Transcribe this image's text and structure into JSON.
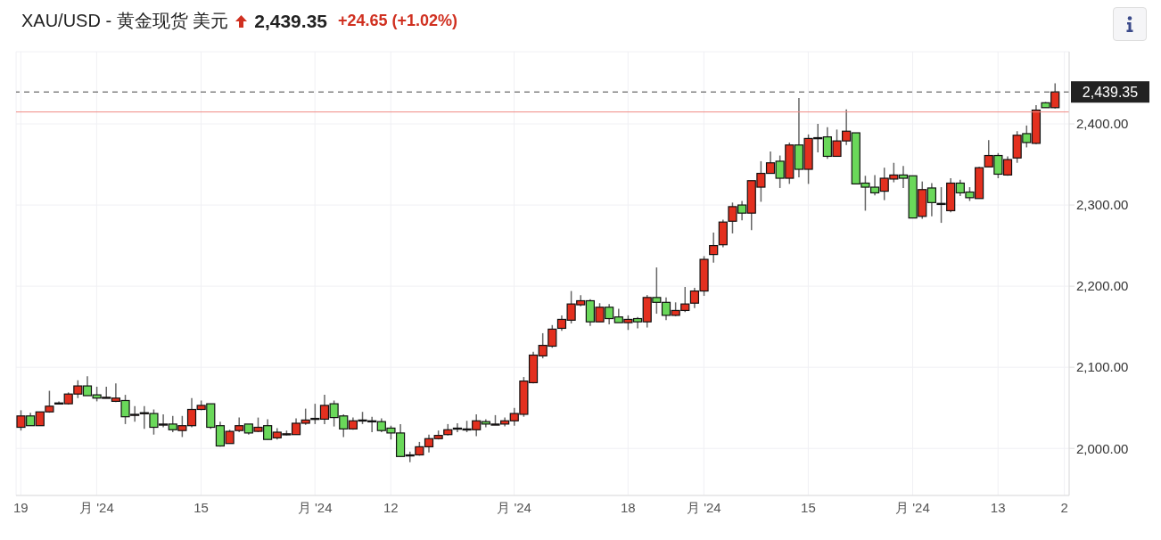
{
  "chart_data": {
    "type": "candlestick",
    "title": "XAU/USD - 黄金现货 美元",
    "annotations": [
      "2,439.35",
      "+24.65 (+1.02%)"
    ],
    "categories": [
      "19",
      null,
      null,
      null,
      null,
      null,
      null,
      null,
      "月 '24",
      null,
      null,
      null,
      null,
      null,
      null,
      null,
      null,
      null,
      null,
      "15",
      null,
      null,
      null,
      null,
      null,
      null,
      null,
      null,
      null,
      null,
      null,
      "月 '24",
      null,
      null,
      null,
      null,
      null,
      null,
      null,
      "12",
      null,
      null,
      null,
      null,
      null,
      null,
      null,
      null,
      null,
      null,
      null,
      null,
      "月 '24",
      null,
      null,
      null,
      null,
      null,
      null,
      null,
      null,
      null,
      null,
      null,
      "18",
      null,
      null,
      null,
      null,
      null,
      null,
      null,
      "月 '24",
      null,
      null,
      null,
      null,
      null,
      null,
      null,
      null,
      null,
      null,
      "15",
      null,
      null,
      null,
      null,
      null,
      null,
      null,
      null,
      null,
      null,
      "月 '24",
      null,
      null,
      null,
      null,
      null,
      null,
      null,
      null,
      "13",
      null,
      null,
      null,
      null,
      null,
      null,
      "2"
    ],
    "ohlc": [
      [
        2026,
        2047,
        2022,
        2040
      ],
      [
        2040,
        2044,
        2028,
        2028
      ],
      [
        2028,
        2045,
        2028,
        2045
      ],
      [
        2045,
        2071,
        2044,
        2052
      ],
      [
        2055,
        2058,
        2054,
        2056
      ],
      [
        2055,
        2069,
        2054,
        2067
      ],
      [
        2067,
        2084,
        2062,
        2077
      ],
      [
        2077,
        2089,
        2065,
        2065
      ],
      [
        2066,
        2076,
        2058,
        2062
      ],
      [
        2063,
        2076,
        2062,
        2063
      ],
      [
        2058,
        2080,
        2057,
        2062
      ],
      [
        2059,
        2066,
        2030,
        2039
      ],
      [
        2042,
        2052,
        2033,
        2042
      ],
      [
        2044,
        2052,
        2024,
        2044
      ],
      [
        2043,
        2048,
        2017,
        2026
      ],
      [
        2030,
        2042,
        2026,
        2030
      ],
      [
        2030,
        2040,
        2020,
        2023
      ],
      [
        2022,
        2040,
        2014,
        2028
      ],
      [
        2028,
        2062,
        2026,
        2048
      ],
      [
        2048,
        2059,
        2047,
        2053
      ],
      [
        2055,
        2055,
        2024,
        2026
      ],
      [
        2028,
        2033,
        2002,
        2003
      ],
      [
        2006,
        2023,
        2006,
        2021
      ],
      [
        2022,
        2038,
        2020,
        2028
      ],
      [
        2030,
        2030,
        2017,
        2019
      ],
      [
        2021,
        2038,
        2020,
        2026
      ],
      [
        2028,
        2036,
        2011,
        2011
      ],
      [
        2013,
        2025,
        2011,
        2020
      ],
      [
        2017,
        2022,
        2016,
        2018
      ],
      [
        2017,
        2037,
        2017,
        2031
      ],
      [
        2031,
        2049,
        2029,
        2035
      ],
      [
        2036,
        2055,
        2030,
        2037
      ],
      [
        2036,
        2066,
        2030,
        2053
      ],
      [
        2055,
        2059,
        2027,
        2038
      ],
      [
        2040,
        2042,
        2014,
        2024
      ],
      [
        2024,
        2038,
        2023,
        2034
      ],
      [
        2034,
        2045,
        2030,
        2035
      ],
      [
        2033,
        2039,
        2020,
        2034
      ],
      [
        2033,
        2037,
        2020,
        2022
      ],
      [
        2025,
        2028,
        2011,
        2019
      ],
      [
        2019,
        2030,
        1990,
        1990
      ],
      [
        1991,
        1996,
        1983,
        1992
      ],
      [
        1992,
        2008,
        1991,
        2002
      ],
      [
        2002,
        2017,
        1995,
        2012
      ],
      [
        2012,
        2022,
        2011,
        2016
      ],
      [
        2017,
        2030,
        2016,
        2023
      ],
      [
        2024,
        2031,
        2020,
        2025
      ],
      [
        2023,
        2034,
        2020,
        2024
      ],
      [
        2023,
        2042,
        2015,
        2034
      ],
      [
        2033,
        2036,
        2026,
        2030
      ],
      [
        2030,
        2041,
        2029,
        2030
      ],
      [
        2030,
        2038,
        2027,
        2034
      ],
      [
        2034,
        2050,
        2028,
        2043
      ],
      [
        2042,
        2088,
        2039,
        2083
      ],
      [
        2081,
        2119,
        2080,
        2115
      ],
      [
        2114,
        2142,
        2111,
        2127
      ],
      [
        2126,
        2152,
        2124,
        2147
      ],
      [
        2148,
        2164,
        2145,
        2159
      ],
      [
        2158,
        2194,
        2154,
        2178
      ],
      [
        2177,
        2189,
        2175,
        2182
      ],
      [
        2182,
        2184,
        2151,
        2156
      ],
      [
        2156,
        2179,
        2156,
        2174
      ],
      [
        2174,
        2178,
        2153,
        2160
      ],
      [
        2162,
        2172,
        2155,
        2155
      ],
      [
        2155,
        2164,
        2146,
        2159
      ],
      [
        2160,
        2162,
        2148,
        2156
      ],
      [
        2156,
        2189,
        2149,
        2186
      ],
      [
        2186,
        2223,
        2166,
        2180
      ],
      [
        2180,
        2186,
        2158,
        2164
      ],
      [
        2164,
        2180,
        2163,
        2170
      ],
      [
        2170,
        2199,
        2168,
        2178
      ],
      [
        2179,
        2198,
        2173,
        2194
      ],
      [
        2194,
        2237,
        2188,
        2233
      ],
      [
        2239,
        2266,
        2229,
        2250
      ],
      [
        2251,
        2282,
        2248,
        2279
      ],
      [
        2280,
        2303,
        2265,
        2298
      ],
      [
        2300,
        2305,
        2281,
        2290
      ],
      [
        2290,
        2330,
        2269,
        2330
      ],
      [
        2322,
        2354,
        2304,
        2339
      ],
      [
        2339,
        2366,
        2339,
        2352
      ],
      [
        2354,
        2361,
        2321,
        2333
      ],
      [
        2333,
        2377,
        2326,
        2374
      ],
      [
        2374,
        2432,
        2334,
        2344
      ],
      [
        2344,
        2387,
        2326,
        2382
      ],
      [
        2382,
        2400,
        2365,
        2383
      ],
      [
        2384,
        2396,
        2357,
        2360
      ],
      [
        2360,
        2393,
        2360,
        2379
      ],
      [
        2379,
        2418,
        2374,
        2391
      ],
      [
        2389,
        2389,
        2326,
        2326
      ],
      [
        2327,
        2336,
        2293,
        2322
      ],
      [
        2322,
        2337,
        2312,
        2315
      ],
      [
        2317,
        2346,
        2306,
        2333
      ],
      [
        2332,
        2352,
        2328,
        2337
      ],
      [
        2337,
        2348,
        2321,
        2333
      ],
      [
        2336,
        2336,
        2284,
        2284
      ],
      [
        2286,
        2329,
        2283,
        2319
      ],
      [
        2321,
        2327,
        2286,
        2303
      ],
      [
        2302,
        2322,
        2278,
        2302
      ],
      [
        2293,
        2333,
        2291,
        2327
      ],
      [
        2327,
        2331,
        2311,
        2315
      ],
      [
        2316,
        2322,
        2305,
        2309
      ],
      [
        2308,
        2347,
        2308,
        2346
      ],
      [
        2347,
        2380,
        2347,
        2361
      ],
      [
        2361,
        2364,
        2333,
        2338
      ],
      [
        2337,
        2360,
        2336,
        2356
      ],
      [
        2358,
        2391,
        2352,
        2386
      ],
      [
        2388,
        2398,
        2371,
        2377
      ],
      [
        2376,
        2423,
        2375,
        2417
      ],
      [
        2426,
        2427,
        2420,
        2420
      ],
      [
        2420,
        2450,
        2419,
        2439.35
      ],
      null
    ],
    "colors": [
      "#e3301f",
      "#6ad85a",
      "#e3301f",
      "#e3301f",
      "#e3301f",
      "#e3301f",
      "#e3301f",
      "#6ad85a",
      "#6ad85a",
      "#e3301f",
      "#e3301f",
      "#6ad85a",
      "#e3301f",
      "#e3301f",
      "#6ad85a",
      "#e3301f",
      "#6ad85a",
      "#e3301f",
      "#e3301f",
      "#e3301f",
      "#6ad85a",
      "#6ad85a",
      "#e3301f",
      "#e3301f",
      "#6ad85a",
      "#e3301f",
      "#6ad85a",
      "#e3301f",
      "#e3301f",
      "#e3301f",
      "#e3301f",
      "#e3301f",
      "#e3301f",
      "#6ad85a",
      "#6ad85a",
      "#e3301f",
      "#e3301f",
      "#e3301f",
      "#6ad85a",
      "#6ad85a",
      "#6ad85a",
      "#e3301f",
      "#e3301f",
      "#e3301f",
      "#e3301f",
      "#e3301f",
      "#e3301f",
      "#e3301f",
      "#e3301f",
      "#6ad85a",
      "#e3301f",
      "#e3301f",
      "#e3301f",
      "#e3301f",
      "#e3301f",
      "#e3301f",
      "#e3301f",
      "#e3301f",
      "#e3301f",
      "#e3301f",
      "#6ad85a",
      "#e3301f",
      "#6ad85a",
      "#6ad85a",
      "#e3301f",
      "#6ad85a",
      "#e3301f",
      "#6ad85a",
      "#6ad85a",
      "#e3301f",
      "#e3301f",
      "#e3301f",
      "#e3301f",
      "#e3301f",
      "#e3301f",
      "#e3301f",
      "#6ad85a",
      "#e3301f",
      "#e3301f",
      "#e3301f",
      "#6ad85a",
      "#e3301f",
      "#6ad85a",
      "#e3301f",
      "#e3301f",
      "#6ad85a",
      "#e3301f",
      "#e3301f",
      "#6ad85a",
      "#6ad85a",
      "#6ad85a",
      "#e3301f",
      "#e3301f",
      "#6ad85a",
      "#6ad85a",
      "#e3301f",
      "#6ad85a",
      "#e3301f",
      "#e3301f",
      "#6ad85a",
      "#6ad85a",
      "#e3301f",
      "#e3301f",
      "#6ad85a",
      "#e3301f",
      "#e3301f",
      "#6ad85a",
      "#e3301f",
      "#6ad85a",
      "#e3301f",
      null
    ],
    "ylim": [
      1942,
      2489
    ],
    "yticks": [
      {
        "value": 2000,
        "label": "2,000.00"
      },
      {
        "value": 2100,
        "label": "2,100.00"
      },
      {
        "value": 2200,
        "label": "2,200.00"
      },
      {
        "value": 2300,
        "label": "2,300.00"
      },
      {
        "value": 2400,
        "label": "2,400.00"
      }
    ],
    "ref_lines": [
      {
        "axis": "y",
        "value": 2439.35,
        "label": "2,439.35",
        "line_style": "dashed",
        "color": "#444444"
      },
      {
        "axis": "y",
        "value": 2414.7,
        "color": "#f08a84"
      }
    ],
    "grid": true
  }
}
